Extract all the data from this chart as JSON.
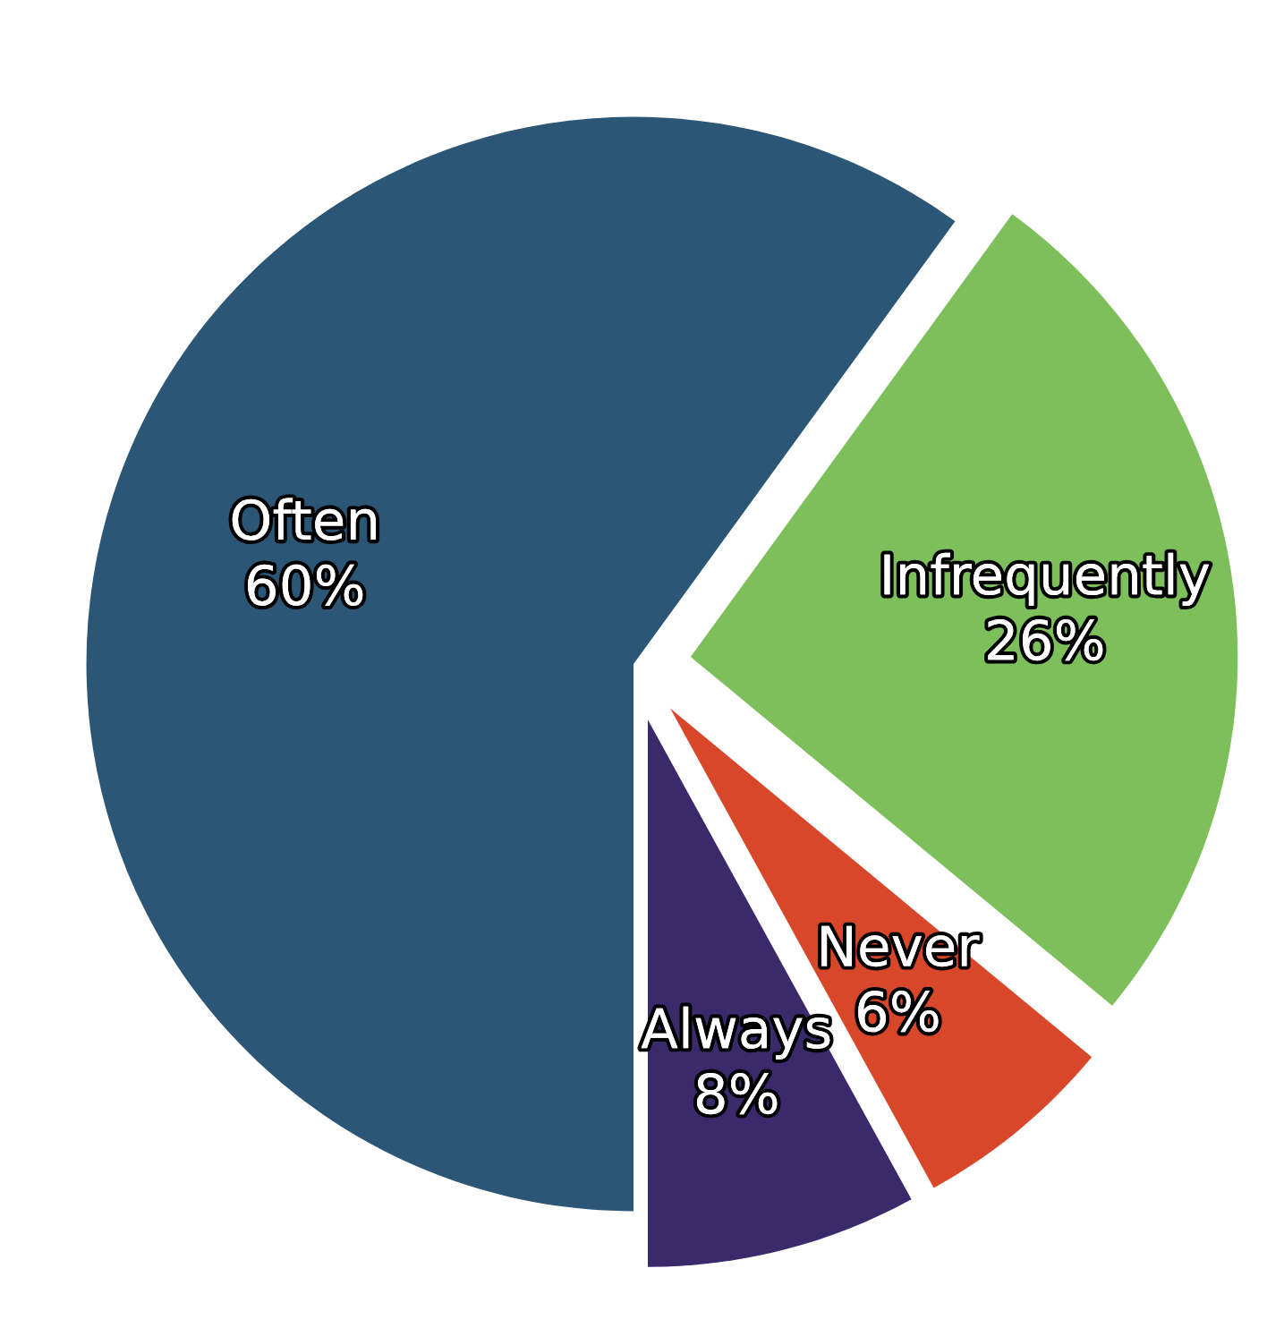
{
  "chart_data": {
    "type": "pie",
    "categories": [
      "Often",
      "Infrequently",
      "Never",
      "Always"
    ],
    "values": [
      60,
      26,
      6,
      8
    ],
    "value_labels": [
      "60%",
      "26%",
      "6%",
      "8%"
    ],
    "colors": [
      "#2b5676",
      "#7dbf5a",
      "#d9472b",
      "#3a2a6c"
    ]
  }
}
